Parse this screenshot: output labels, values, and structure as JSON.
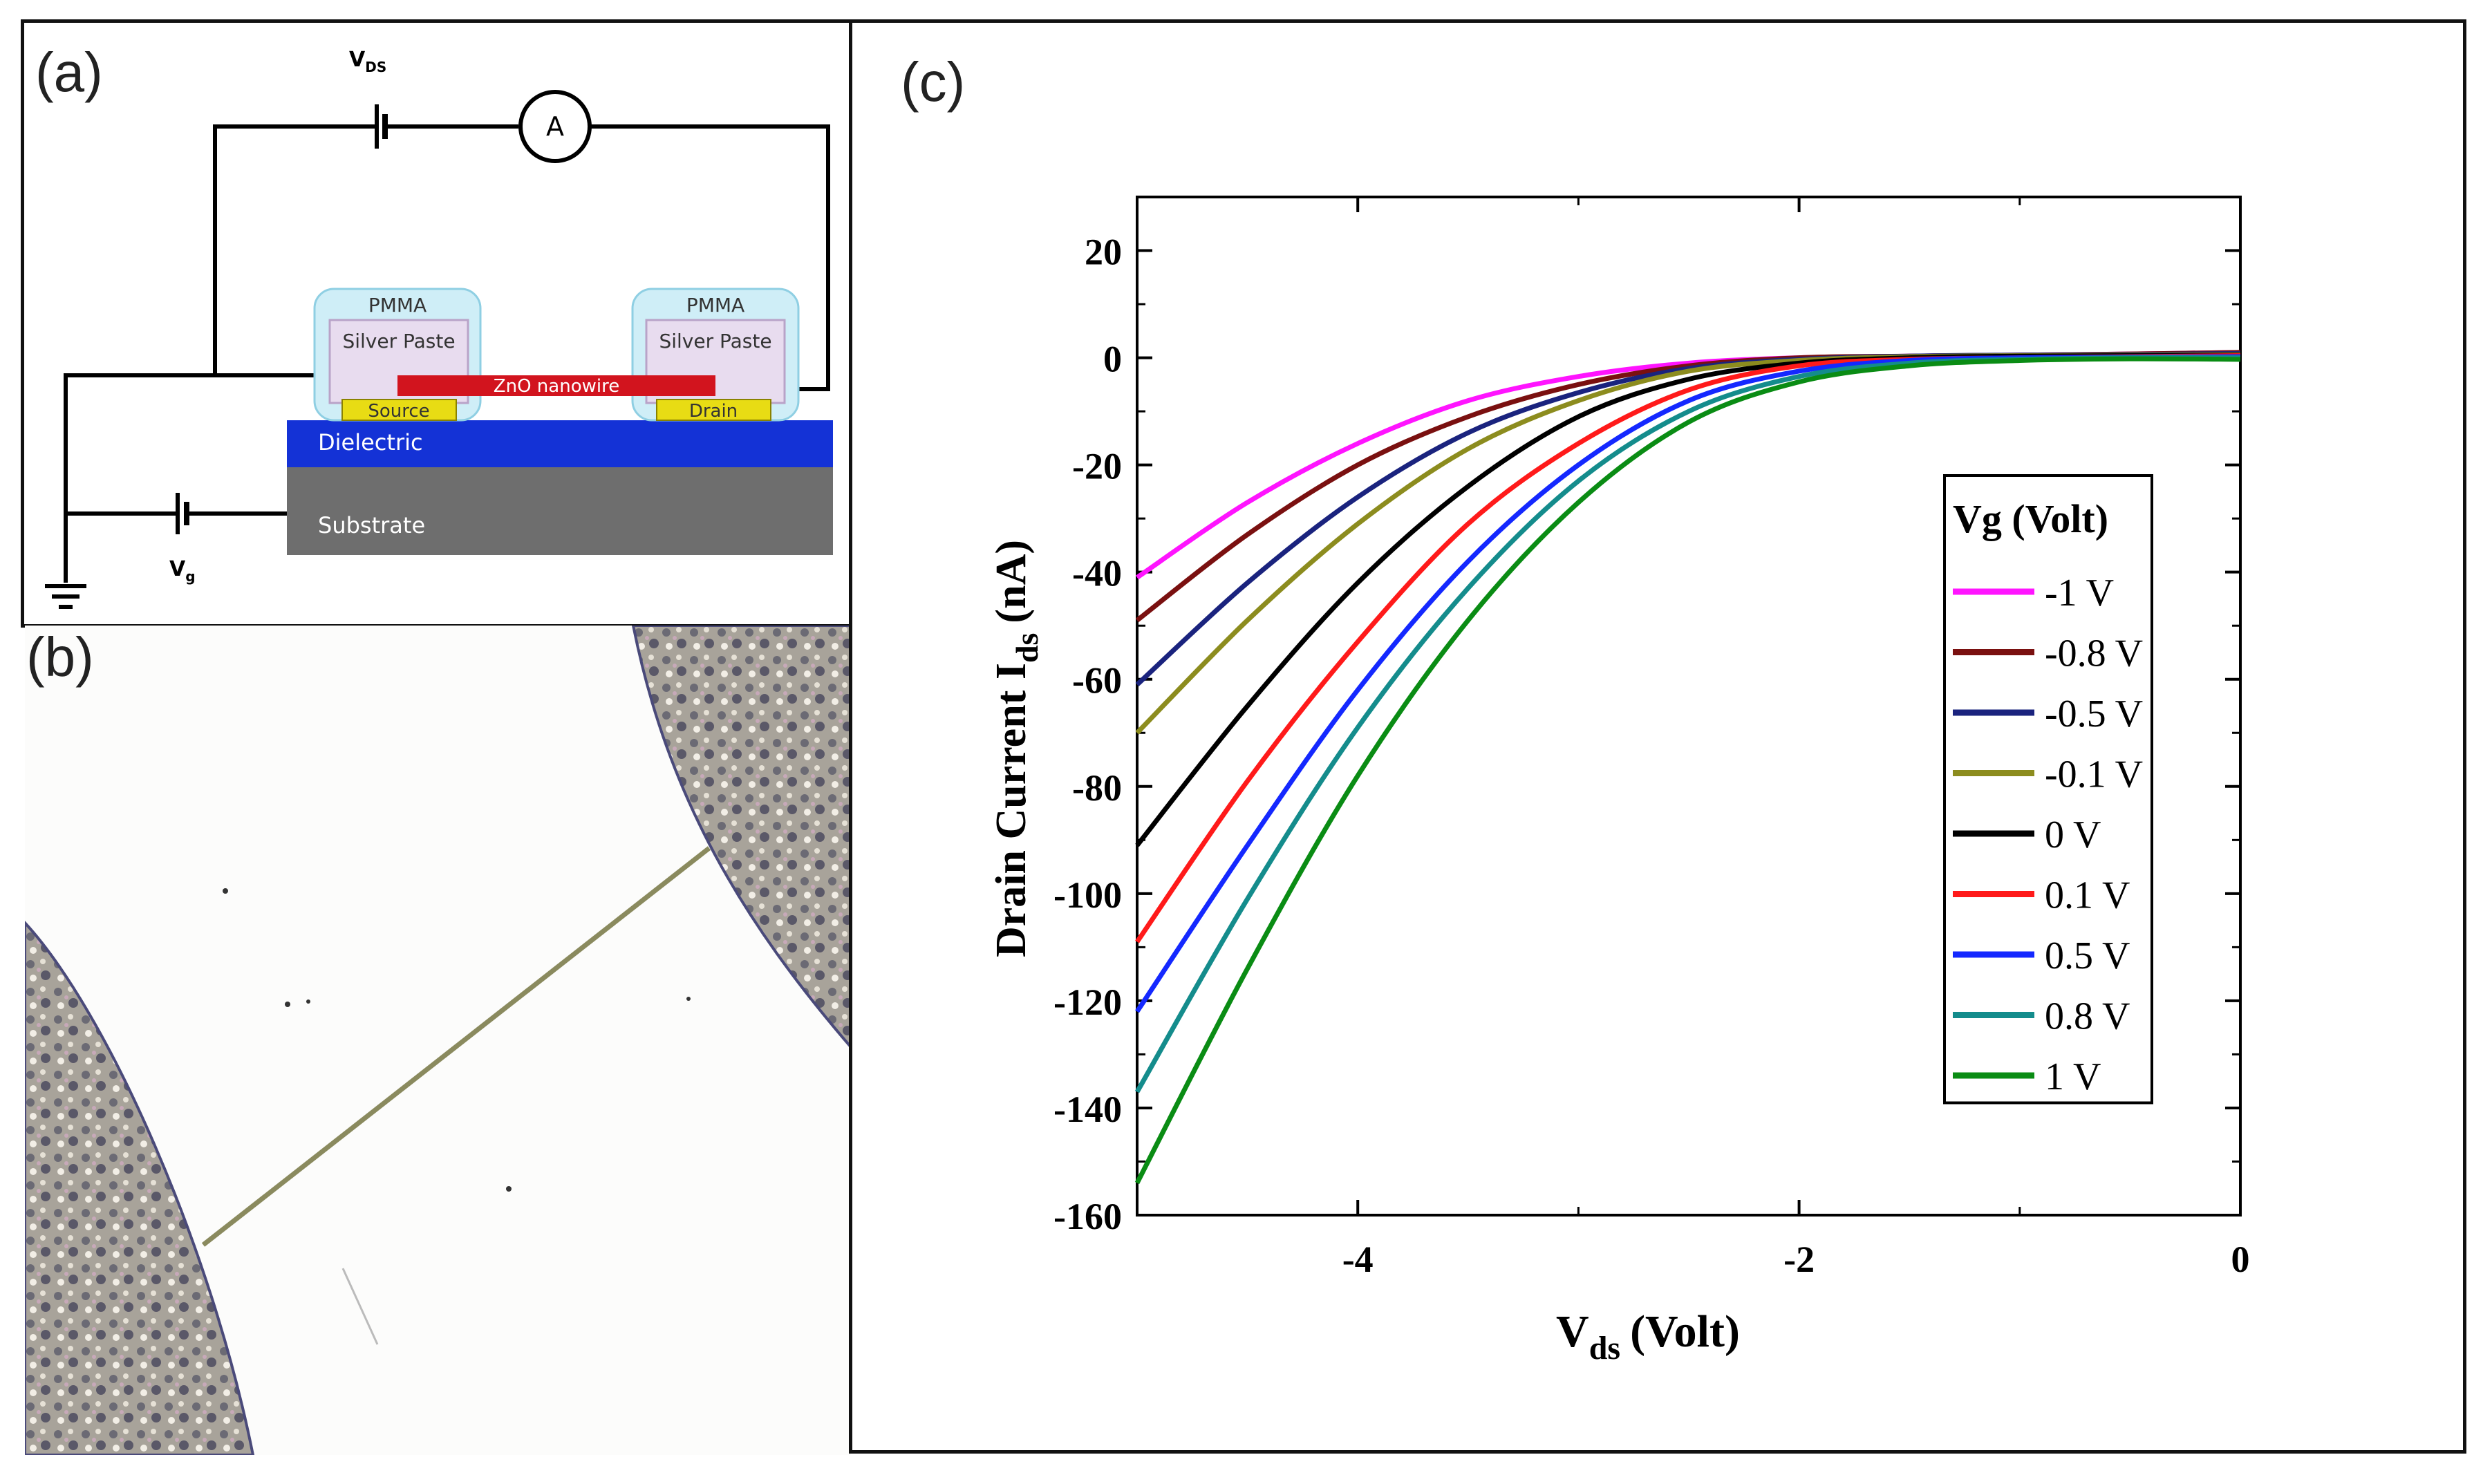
{
  "panel_a": {
    "label": "(a)",
    "vds_label": "V",
    "vds_sub": "DS",
    "ammeter": "A",
    "vg_label": "V",
    "vg_sub": "g",
    "pmma_left": "PMMA",
    "pmma_right": "PMMA",
    "silver_left": "Silver Paste",
    "silver_right": "Silver Paste",
    "nanowire": "ZnO nanowire",
    "source": "Source",
    "drain": "Drain",
    "dielectric": "Dielectric",
    "substrate": "Substrate"
  },
  "panel_b": {
    "label": "(b)"
  },
  "panel_c": {
    "label": "(c)"
  },
  "colors": {
    "dielectric": "#1432d6",
    "substrate": "#6e6e6e",
    "nanowire": "#d2141e",
    "electrode": "#e8dc14",
    "pmma": "#cfeef7",
    "silver": "#e8dcef"
  },
  "chart_data": {
    "type": "line",
    "xlabel": "V",
    "xlabel_sub": "ds",
    "xlabel_unit": "(Volt)",
    "ylabel": "Drain Current I",
    "ylabel_sub": "ds",
    "ylabel_unit": "(nA)",
    "xlim": [
      -5,
      0
    ],
    "ylim": [
      -160,
      30
    ],
    "x_ticks": [
      -4,
      -2,
      0
    ],
    "x_tick_labels": [
      "-4",
      "-2",
      "0"
    ],
    "y_ticks": [
      20,
      0,
      -20,
      -40,
      -60,
      -80,
      -100,
      -120,
      -140,
      -160
    ],
    "y_tick_labels": [
      "20",
      "0",
      "-20",
      "-40",
      "-60",
      "-80",
      "-100",
      "-120",
      "-140",
      "-160"
    ],
    "legend_title": "Vg (Volt)",
    "legend_position": "right",
    "x": [
      -5,
      -4.5,
      -4,
      -3.5,
      -3,
      -2.5,
      -2,
      -1.5,
      -1,
      -0.5,
      0
    ],
    "series": [
      {
        "name": "-1 V",
        "color": "#ff14ff",
        "values": [
          -41,
          -27,
          -16,
          -8,
          -3.5,
          -1,
          0,
          0.3,
          0.5,
          0.7,
          1
        ]
      },
      {
        "name": "-0.8 V",
        "color": "#7a1010",
        "values": [
          -49,
          -33,
          -20,
          -11,
          -5,
          -1.5,
          0,
          0.3,
          0.5,
          0.7,
          1
        ]
      },
      {
        "name": "-0.5 V",
        "color": "#1a237e",
        "values": [
          -61,
          -42,
          -26,
          -14,
          -6.5,
          -2,
          -0.3,
          0.3,
          0.5,
          0.6,
          0.8
        ]
      },
      {
        "name": "-0.1 V",
        "color": "#8c8c1e",
        "values": [
          -70,
          -49,
          -31,
          -17,
          -8,
          -2.5,
          -0.5,
          0.2,
          0.4,
          0.5,
          0.6
        ]
      },
      {
        "name": "0 V",
        "color": "#000000",
        "values": [
          -91,
          -65,
          -42,
          -24,
          -11,
          -4,
          -1,
          0,
          0.3,
          0.4,
          0.5
        ]
      },
      {
        "name": "0.1 V",
        "color": "#ff1a1a",
        "values": [
          -109,
          -79,
          -53,
          -31,
          -16,
          -6,
          -1.5,
          -0.3,
          0,
          0.2,
          0.4
        ]
      },
      {
        "name": "0.5 V",
        "color": "#1428ff",
        "values": [
          -122,
          -91,
          -62,
          -38,
          -20,
          -8,
          -2.5,
          -0.5,
          0,
          0.1,
          0.2
        ]
      },
      {
        "name": "0.8 V",
        "color": "#148c8c",
        "values": [
          -137,
          -101,
          -69,
          -43,
          -23,
          -10,
          -3.5,
          -1,
          -0.3,
          0,
          0
        ]
      },
      {
        "name": "1 V",
        "color": "#0a8c14",
        "values": [
          -154,
          -114,
          -78,
          -49,
          -27,
          -12,
          -4.5,
          -1.5,
          -0.5,
          -0.2,
          -0.3
        ]
      }
    ]
  }
}
